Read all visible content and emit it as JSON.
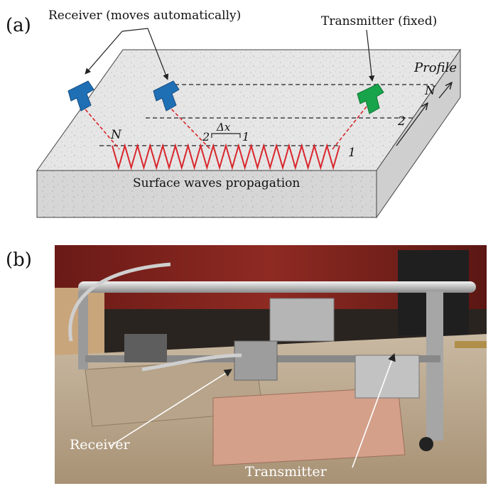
{
  "panel_a": {
    "label": "(a)",
    "receiver_label": "Receiver (moves automatically)",
    "transmitter_label": "Transmitter (fixed)",
    "profile_label": "Profile",
    "profile_n": "N",
    "line_1": "1",
    "line_2": "2",
    "line_n": "N",
    "wave_start": "2",
    "wave_end": "1",
    "delta_x": "Δx",
    "wave_caption": "Surface waves propagation",
    "colors": {
      "receiver": "#1f6fb5",
      "transmitter": "#18a44a",
      "wave": "#d9262c"
    }
  },
  "panel_b": {
    "label": "(b)",
    "receiver_label": "Receiver",
    "transmitter_label": "Transmitter"
  }
}
